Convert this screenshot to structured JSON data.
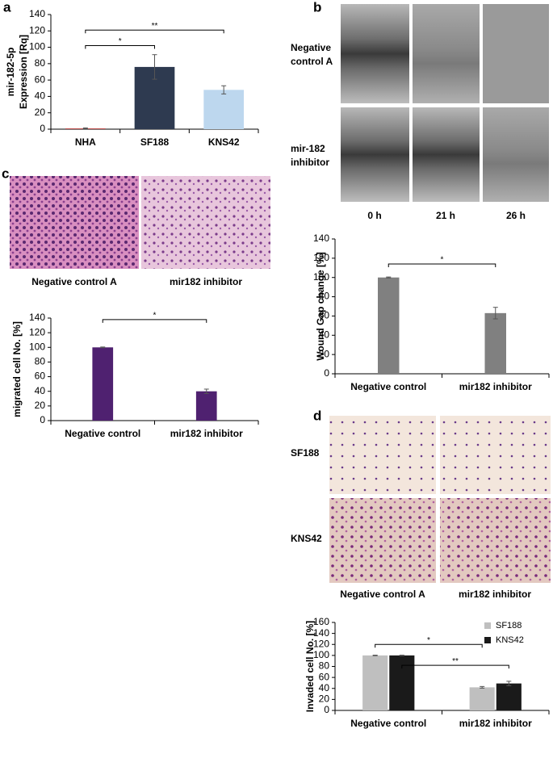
{
  "panel_letters": [
    "a",
    "b",
    "c",
    "d"
  ],
  "wound_images": {
    "rows": [
      [
        "Negative",
        "control A"
      ],
      [
        "mir-182",
        "inhibitor"
      ]
    ],
    "columns": [
      "0 h",
      "21 h",
      "26 h"
    ]
  },
  "migration_images": {
    "columns": [
      "Negative control A",
      "mir182 inhibitor"
    ]
  },
  "invasion_images": {
    "rows": [
      "SF188",
      "KNS42"
    ],
    "columns": [
      "Negative control A",
      "mir182 inhibitor"
    ]
  },
  "chart_data": [
    {
      "type": "bar",
      "ylabel": [
        "mir-182-5p",
        "Expression [Rq]"
      ],
      "categories": [
        "NHA",
        "SF188",
        "KNS42"
      ],
      "values": [
        1,
        76,
        48
      ],
      "errors": [
        0.5,
        15,
        5
      ],
      "colors": [
        "#c0504d",
        "#2e3a50",
        "#bdd7ee"
      ],
      "ylim": [
        0,
        140
      ],
      "yticks": [
        0,
        20,
        40,
        60,
        80,
        100,
        120,
        140
      ],
      "annotations": [
        {
          "from": 0,
          "to": 1,
          "y": 102,
          "label": "*"
        },
        {
          "from": 0,
          "to": 2,
          "y": 121,
          "label": "**"
        }
      ]
    },
    {
      "type": "bar",
      "ylabel": "Wound Gap change [%]",
      "categories": [
        "Negative control",
        "mir182 inhibitor"
      ],
      "values": [
        100,
        63
      ],
      "errors": [
        0.5,
        6
      ],
      "color": "#808080",
      "ylim": [
        0,
        140
      ],
      "yticks": [
        0,
        20,
        40,
        60,
        80,
        100,
        120,
        140
      ],
      "annotations": [
        {
          "from": 0,
          "to": 1,
          "y": 114,
          "label": "*"
        }
      ]
    },
    {
      "type": "bar",
      "ylabel": "migrated cell No. [%]",
      "categories": [
        "Negative control",
        "mir182 inhibitor"
      ],
      "values": [
        100,
        40
      ],
      "errors": [
        0.5,
        3
      ],
      "color": "#4f2170",
      "ylim": [
        0,
        140
      ],
      "yticks": [
        0,
        20,
        40,
        60,
        80,
        100,
        120,
        140
      ],
      "annotations": [
        {
          "from": 0,
          "to": 1,
          "y": 138,
          "label": "*"
        }
      ]
    },
    {
      "type": "bar",
      "ylabel": "Invaded cell No. [%]",
      "categories": [
        "Negative control",
        "mir182 inhibitor"
      ],
      "series": [
        {
          "name": "SF188",
          "color": "#bfbfbf",
          "values": [
            100,
            42
          ],
          "errors": [
            0.5,
            1.5
          ]
        },
        {
          "name": "KNS42",
          "color": "#1a1a1a",
          "values": [
            100,
            49
          ],
          "errors": [
            0.5,
            4
          ]
        }
      ],
      "legend": "upper right",
      "ylim": [
        0,
        160
      ],
      "yticks": [
        0,
        20,
        40,
        60,
        80,
        100,
        120,
        140,
        160
      ],
      "annotations": [
        {
          "from": [
            0,
            0
          ],
          "to": [
            1,
            0
          ],
          "y": 120,
          "label": "*"
        },
        {
          "from": [
            0,
            1
          ],
          "to": [
            1,
            1
          ],
          "y": 82,
          "label": "**"
        }
      ]
    }
  ]
}
